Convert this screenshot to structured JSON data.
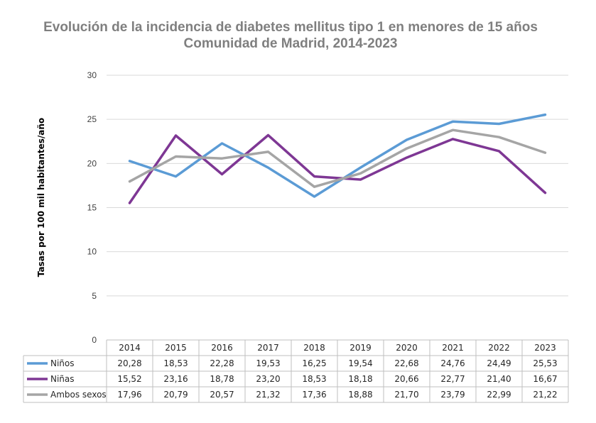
{
  "chart_data": {
    "type": "line",
    "title_line1": "Evolución de la incidencia de diabetes mellitus tipo 1 en menores de 15 años",
    "title_line2": "Comunidad de Madrid, 2014-2023",
    "ylabel": "Tasas por 100 mil habitantes/año",
    "xlabel": "",
    "ylim": [
      0,
      30
    ],
    "yticks": [
      "0",
      "5",
      "10",
      "15",
      "20",
      "25",
      "30"
    ],
    "grid": true,
    "categories": [
      "2014",
      "2015",
      "2016",
      "2017",
      "2018",
      "2019",
      "2020",
      "2021",
      "2022",
      "2023"
    ],
    "series": [
      {
        "name": "Niños",
        "color": "#5b9bd5",
        "values": [
          20.28,
          18.53,
          22.28,
          19.53,
          16.25,
          19.54,
          22.68,
          24.76,
          24.49,
          25.53
        ],
        "labels": [
          "20,28",
          "18,53",
          "22,28",
          "19,53",
          "16,25",
          "19,54",
          "22,68",
          "24,76",
          "24,49",
          "25,53"
        ]
      },
      {
        "name": "Niñas",
        "color": "#7e3794",
        "values": [
          15.52,
          23.16,
          18.78,
          23.2,
          18.53,
          18.18,
          20.66,
          22.77,
          21.4,
          16.67
        ],
        "labels": [
          "15,52",
          "23,16",
          "18,78",
          "23,20",
          "18,53",
          "18,18",
          "20,66",
          "22,77",
          "21,40",
          "16,67"
        ]
      },
      {
        "name": "Ambos sexos",
        "color": "#a5a5a5",
        "values": [
          17.96,
          20.79,
          20.57,
          21.32,
          17.36,
          18.88,
          21.7,
          23.79,
          22.99,
          21.22
        ],
        "labels": [
          "17,96",
          "20,79",
          "20,57",
          "21,32",
          "17,36",
          "18,88",
          "21,70",
          "23,79",
          "22,99",
          "21,22"
        ]
      }
    ]
  }
}
